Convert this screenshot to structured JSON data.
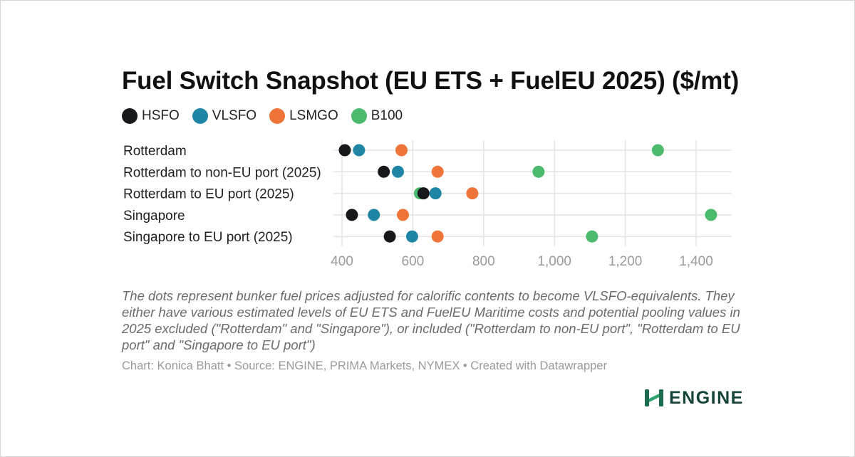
{
  "chart_data": {
    "type": "scatter",
    "title": "Fuel Switch Snapshot (EU ETS + FuelEU 2025) ($/mt)",
    "legend": [
      {
        "name": "HSFO",
        "color": "#17181c"
      },
      {
        "name": "VLSFO",
        "color": "#1f85a4"
      },
      {
        "name": "LSMGO",
        "color": "#ee7439"
      },
      {
        "name": "B100",
        "color": "#4cba6c"
      }
    ],
    "categories": [
      "Rotterdam",
      "Rotterdam to non-EU port (2025)",
      "Rotterdam to EU port (2025)",
      "Singapore",
      "Singapore to EU port (2025)"
    ],
    "series": [
      {
        "name": "HSFO",
        "color": "#17181c",
        "values": [
          408,
          518,
          630,
          428,
          535
        ]
      },
      {
        "name": "VLSFO",
        "color": "#1f85a4",
        "values": [
          448,
          558,
          664,
          490,
          598
        ]
      },
      {
        "name": "LSMGO",
        "color": "#ee7439",
        "values": [
          568,
          670,
          768,
          572,
          670
        ]
      },
      {
        "name": "B100",
        "color": "#4cba6c",
        "values": [
          1292,
          955,
          620,
          1442,
          1106
        ]
      }
    ],
    "xlim": [
      380,
      1520
    ],
    "xticks": [
      400,
      600,
      800,
      1000,
      1200,
      1400
    ],
    "xtick_labels": [
      "400",
      "600",
      "800",
      "1,000",
      "1,200",
      "1,400"
    ],
    "grid": true,
    "legend_placement": "top-left",
    "notes": "The dots represent bunker fuel prices adjusted for calorific contents to become VLSFO-equivalents. They either have various estimated levels of EU ETS and FuelEU Maritime costs and potential pooling values in 2025 excluded (\"Rotterdam\" and \"Singapore\"), or included (\"Rotterdam to non-EU port\", \"Rotterdam to EU port\" and \"Singapore to EU port\")",
    "credit": "Chart: Konica Bhatt • Source: ENGINE, PRIMA Markets, NYMEX • Created with Datawrapper"
  },
  "logo": {
    "text": "ENGINE",
    "icon": "engine-logo-icon",
    "color": "#17443a"
  }
}
